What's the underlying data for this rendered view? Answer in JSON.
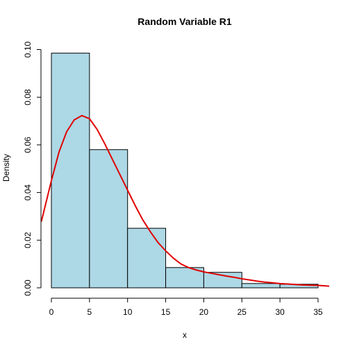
{
  "chart_data": {
    "type": "histogram",
    "title": "Random Variable R1",
    "xlabel": "x",
    "ylabel": "Density",
    "xlim": [
      0,
      35
    ],
    "ylim": [
      0,
      0.1
    ],
    "x_ticks": [
      0,
      5,
      10,
      15,
      20,
      25,
      30,
      35
    ],
    "x_tick_labels": [
      "0",
      "5",
      "10",
      "15",
      "20",
      "25",
      "30",
      "35"
    ],
    "y_ticks": [
      0.0,
      0.02,
      0.04,
      0.06,
      0.08,
      0.1
    ],
    "y_tick_labels": [
      "0.00",
      "0.02",
      "0.04",
      "0.06",
      "0.08",
      "0.10"
    ],
    "bins": [
      {
        "x0": 0,
        "x1": 5,
        "density": 0.0985
      },
      {
        "x0": 5,
        "x1": 10,
        "density": 0.058
      },
      {
        "x0": 10,
        "x1": 15,
        "density": 0.025
      },
      {
        "x0": 15,
        "x1": 20,
        "density": 0.0085
      },
      {
        "x0": 20,
        "x1": 25,
        "density": 0.0065
      },
      {
        "x0": 25,
        "x1": 30,
        "density": 0.0018
      },
      {
        "x0": 30,
        "x1": 35,
        "density": 0.0015
      }
    ],
    "density_curve": {
      "color": "#E00000",
      "points": [
        [
          -1.3,
          0.028
        ],
        [
          0,
          0.045
        ],
        [
          1,
          0.057
        ],
        [
          2,
          0.0655
        ],
        [
          3,
          0.0705
        ],
        [
          4,
          0.0723
        ],
        [
          5,
          0.071
        ],
        [
          6,
          0.0665
        ],
        [
          7,
          0.0605
        ],
        [
          8,
          0.054
        ],
        [
          9,
          0.0475
        ],
        [
          10,
          0.041
        ],
        [
          11,
          0.0345
        ],
        [
          12,
          0.0285
        ],
        [
          13,
          0.0235
        ],
        [
          14,
          0.019
        ],
        [
          15,
          0.0155
        ],
        [
          16,
          0.0125
        ],
        [
          17,
          0.01
        ],
        [
          18,
          0.0085
        ],
        [
          19,
          0.0075
        ],
        [
          20,
          0.0067
        ],
        [
          21,
          0.0061
        ],
        [
          22,
          0.0055
        ],
        [
          23,
          0.0049
        ],
        [
          24,
          0.0044
        ],
        [
          25,
          0.0038
        ],
        [
          26,
          0.0033
        ],
        [
          27,
          0.0028
        ],
        [
          28,
          0.0024
        ],
        [
          29,
          0.0021
        ],
        [
          30,
          0.0018
        ],
        [
          31,
          0.0016
        ],
        [
          32,
          0.0014
        ],
        [
          33,
          0.0012
        ],
        [
          34,
          0.0011
        ],
        [
          35,
          0.001
        ],
        [
          36.5,
          0.0007
        ]
      ]
    },
    "bar_fill": "#ADD8E6",
    "bar_stroke": "#000000",
    "grid": false,
    "legend": "none"
  }
}
